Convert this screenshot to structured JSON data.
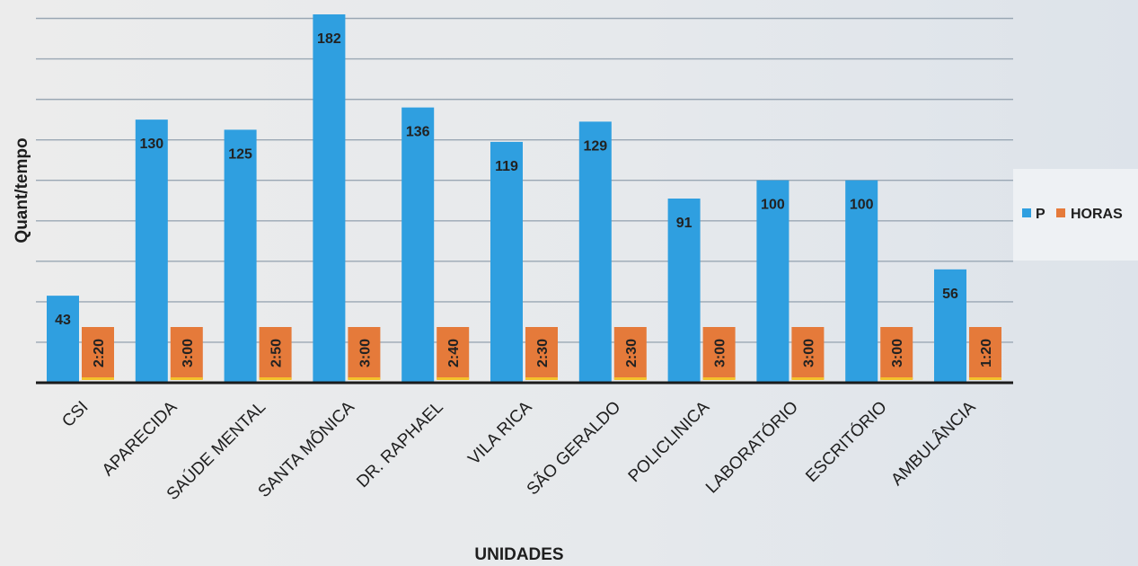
{
  "chart_data": {
    "type": "bar",
    "xlabel": "UNIDADES",
    "ylabel": "Quant/tempo",
    "ylim": [
      0,
      180
    ],
    "grid": true,
    "legend_position": "right",
    "categories": [
      "CSI",
      "APARECIDA",
      "SAÚDE MENTAL",
      "SANTA MÔNICA",
      "DR. RAPHAEL",
      "VILA RICA",
      "SÃO GERALDO",
      "POLICLINICA",
      "LABORATÓRIO",
      "ESCRITÓRIO",
      "AMBULÂNCIA"
    ],
    "series": [
      {
        "name": "P",
        "color": "#2f9fe0",
        "values": [
          43,
          130,
          125,
          182,
          136,
          119,
          129,
          91,
          100,
          100,
          56
        ],
        "labels": [
          "43",
          "130",
          "125",
          "182",
          "136",
          "119",
          "129",
          "91",
          "100",
          "100",
          "56"
        ]
      },
      {
        "name": "HORAS",
        "color": "#e57a3a",
        "values": [
          2.33,
          3.0,
          2.83,
          3.0,
          2.67,
          2.5,
          2.5,
          3.0,
          3.0,
          3.0,
          1.33
        ],
        "labels": [
          "2:20",
          "3:00",
          "2:50",
          "3:00",
          "2:40",
          "2:30",
          "2:30",
          "3:00",
          "3:00",
          "3:00",
          "1:20"
        ]
      }
    ]
  }
}
